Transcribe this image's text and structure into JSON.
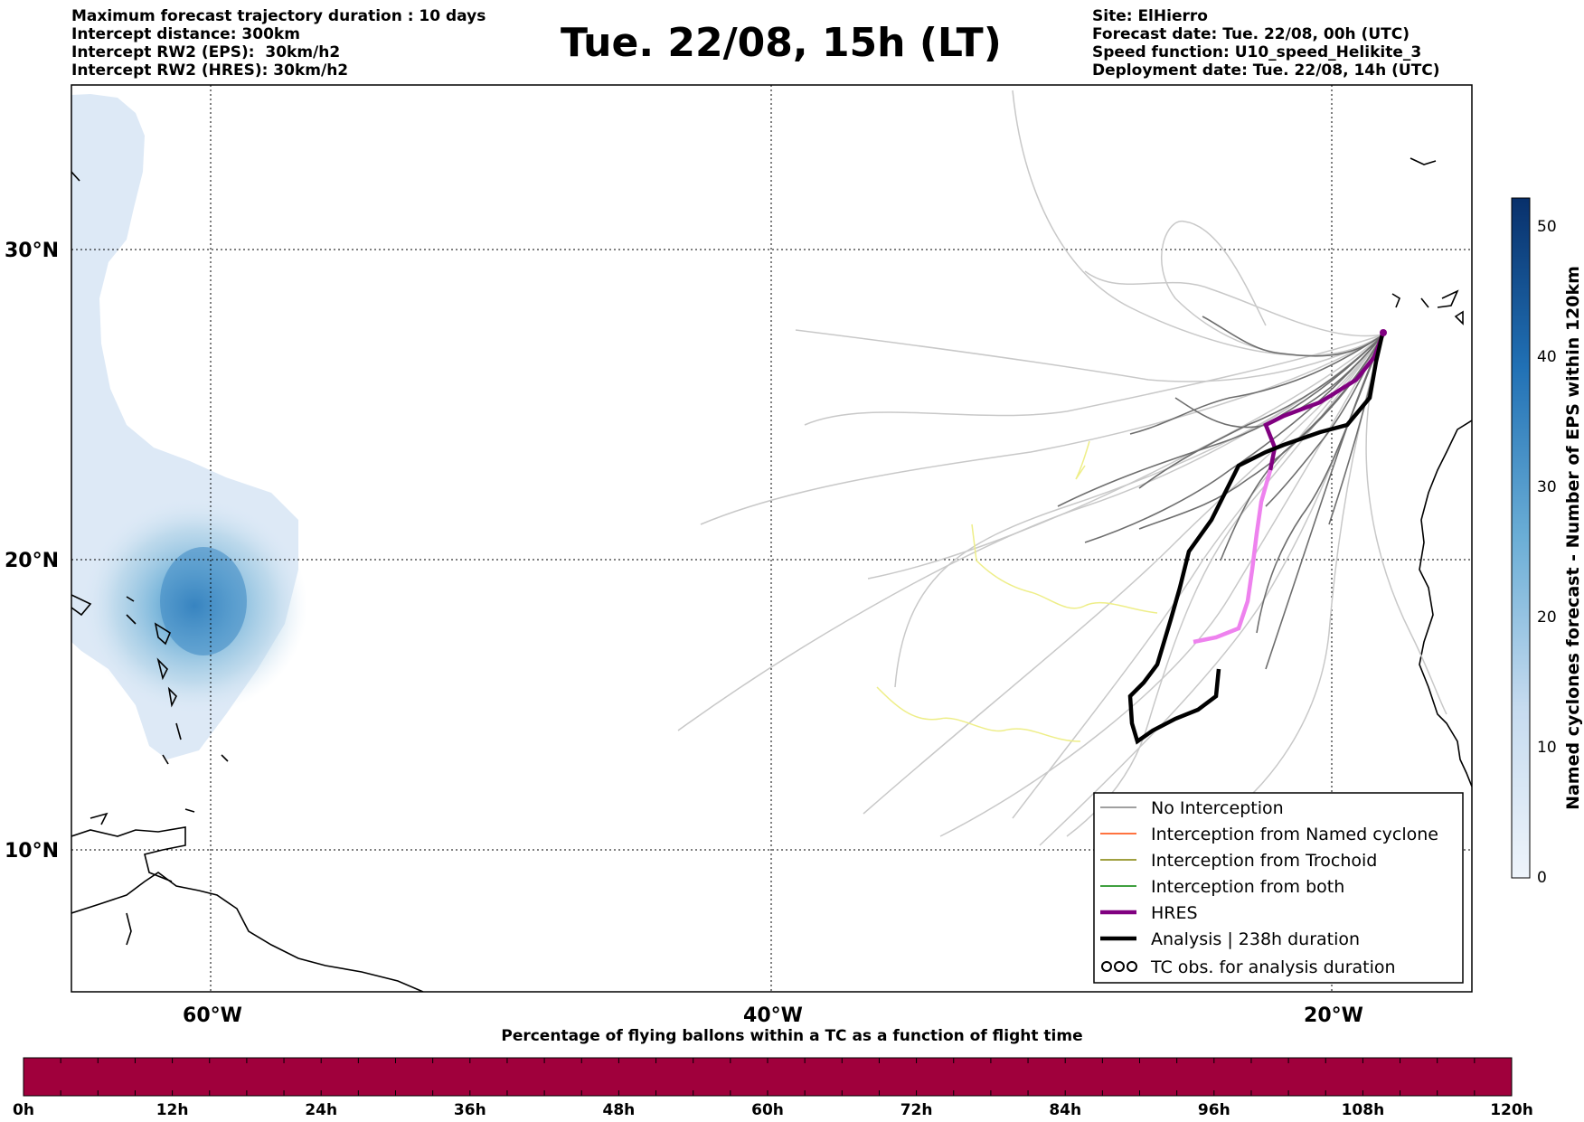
{
  "header_left": [
    "Maximum forecast trajectory duration : 10 days",
    "Intercept distance: 300km",
    "Intercept RW2 (EPS):  30km/h2",
    "Intercept RW2 (HRES): 30km/h2"
  ],
  "title": "Tue. 22/08, 15h (LT)",
  "header_right": [
    "Site: ElHierro",
    "Forecast date: Tue. 22/08, 00h (UTC)",
    "Speed function: U10_speed_Helikite_3",
    "Deployment date: Tue. 22/08, 14h (UTC)"
  ],
  "map": {
    "lat_labels": [
      "30°N",
      "20°N",
      "10°N"
    ],
    "lat_values": [
      30,
      20,
      10
    ],
    "lon_labels": [
      "60°W",
      "40°W",
      "20°W"
    ],
    "lon_values": [
      -60,
      -40,
      -20
    ],
    "extent": {
      "lon_min": -65,
      "lon_max": -15,
      "lat_min": 5.5,
      "lat_max": 34.8
    },
    "site": {
      "name": "ElHierro",
      "lon": -18.0,
      "lat": 27.7
    }
  },
  "legend": [
    {
      "label": "No Interception",
      "color": "#808080",
      "style": "thin"
    },
    {
      "label": "Interception from Named cyclone",
      "color": "#ff4500",
      "style": "thin"
    },
    {
      "label": "Interception from Trochoid",
      "color": "#808000",
      "style": "thin"
    },
    {
      "label": "Interception from both",
      "color": "#008000",
      "style": "thin"
    },
    {
      "label": "HRES",
      "color": "#800080",
      "style": "thick"
    },
    {
      "label": "Analysis | 238h duration",
      "color": "#000000",
      "style": "thick"
    },
    {
      "label": "TC obs. for analysis duration",
      "color": "#000000",
      "style": "symbol"
    }
  ],
  "colorbar": {
    "label": "Named cyclones forecast - Number of EPS within 120km",
    "ticks": [
      "0",
      "10",
      "20",
      "30",
      "40",
      "50"
    ],
    "min": 0,
    "max": 52,
    "color_low": "#e6eef8",
    "color_high": "#08306b"
  },
  "flight_bar": {
    "title": "Percentage of flying ballons within a TC as a function of flight time",
    "ticks": [
      "0h",
      "12h",
      "24h",
      "36h",
      "48h",
      "60h",
      "72h",
      "84h",
      "96h",
      "108h",
      "120h"
    ],
    "fill_color": "#a0003c"
  },
  "chart_data": {
    "type": "map",
    "tracks": {
      "hres": [
        [
          -18.0,
          27.5
        ],
        [
          -18.7,
          26.0
        ],
        [
          -20.5,
          24.5
        ],
        [
          -22.5,
          23.7
        ],
        [
          -23.0,
          22.8
        ],
        [
          -23.3,
          21.0
        ],
        [
          -23.5,
          19.0
        ],
        [
          -23.7,
          17.5
        ],
        [
          -24.5,
          17.0
        ],
        [
          -26.0,
          16.8
        ]
      ],
      "analysis": [
        [
          -18.0,
          27.5
        ],
        [
          -18.6,
          25.5
        ],
        [
          -19.5,
          23.8
        ],
        [
          -21.0,
          23.0
        ],
        [
          -22.5,
          22.7
        ],
        [
          -25.0,
          21.8
        ],
        [
          -26.0,
          20.0
        ],
        [
          -27.0,
          18.0
        ],
        [
          -27.8,
          16.3
        ],
        [
          -28.6,
          15.2
        ],
        [
          -29.5,
          14.4
        ],
        [
          -29.4,
          13.4
        ],
        [
          -28.0,
          14.0
        ],
        [
          -25.2,
          15.0
        ],
        [
          -24.8,
          16.2
        ]
      ]
    }
  }
}
